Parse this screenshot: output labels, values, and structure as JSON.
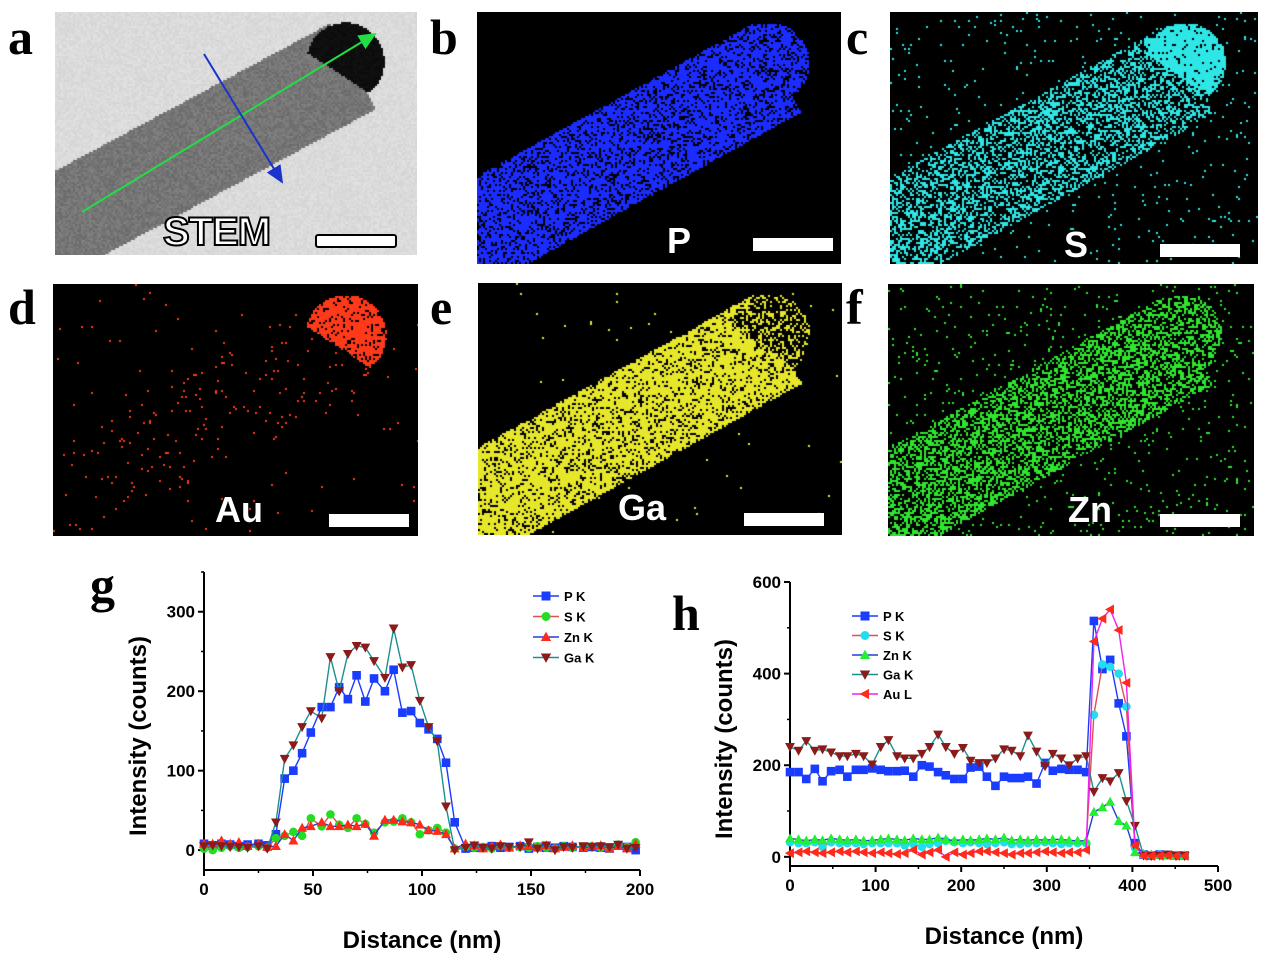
{
  "figure": {
    "panels": [
      {
        "letter": "a",
        "label": "STEM",
        "type": "stem"
      },
      {
        "letter": "b",
        "label": "P",
        "color": "#1a2cff",
        "type": "map"
      },
      {
        "letter": "c",
        "label": "S",
        "color": "#2ee6e6",
        "type": "map"
      },
      {
        "letter": "d",
        "label": "Au",
        "color": "#ff3a1a",
        "type": "map"
      },
      {
        "letter": "e",
        "label": "Ga",
        "color": "#e6e62a",
        "type": "map"
      },
      {
        "letter": "f",
        "label": "Zn",
        "color": "#2ee62e",
        "type": "map"
      }
    ],
    "stem_arrows": {
      "long_axis_color": "#22dd44",
      "cross_axis_color": "#1a33cc"
    }
  },
  "chart_data": [
    {
      "panel": "g",
      "type": "line",
      "title": "",
      "xlabel": "Distance (nm)",
      "ylabel": "Intensity (counts)",
      "xlim": [
        0,
        200
      ],
      "ylim": [
        -25,
        350
      ],
      "xticks": [
        0,
        50,
        100,
        150,
        200
      ],
      "yticks": [
        0,
        100,
        200,
        300
      ],
      "grid": false,
      "legend_position": "top-right",
      "x": [
        0,
        4,
        8,
        12,
        16,
        20,
        25,
        29,
        33,
        37,
        41,
        45,
        49,
        54,
        58,
        62,
        66,
        70,
        74,
        78,
        83,
        87,
        91,
        95,
        99,
        103,
        107,
        111,
        115,
        120,
        124,
        128,
        132,
        136,
        140,
        145,
        149,
        153,
        157,
        161,
        165,
        169,
        174,
        178,
        182,
        186,
        190,
        194,
        198
      ],
      "series": [
        {
          "name": "P K",
          "marker": "square",
          "marker_color": "#1a3cff",
          "line_color": "#1a3cff",
          "values": [
            8,
            6,
            8,
            7,
            5,
            7,
            8,
            6,
            20,
            90,
            100,
            122,
            148,
            180,
            180,
            205,
            190,
            220,
            187,
            216,
            200,
            227,
            173,
            175,
            160,
            152,
            140,
            110,
            35,
            2,
            3,
            3,
            5,
            3,
            4,
            5,
            2,
            4,
            3,
            3,
            5,
            4,
            3,
            4,
            3,
            2,
            6,
            4,
            0
          ]
        },
        {
          "name": "S K",
          "marker": "circle",
          "marker_color": "#22dd22",
          "line_color": "#e05050",
          "values": [
            2,
            0,
            3,
            5,
            3,
            4,
            5,
            3,
            15,
            18,
            23,
            18,
            40,
            30,
            45,
            32,
            28,
            40,
            33,
            22,
            35,
            36,
            40,
            35,
            20,
            25,
            28,
            22,
            2,
            4,
            3,
            4,
            2,
            5,
            3,
            4,
            3,
            5,
            3,
            2,
            5,
            3,
            4,
            5,
            3,
            2,
            7,
            4,
            10
          ]
        },
        {
          "name": "Zn K",
          "marker": "triangle-up",
          "marker_color": "#ff2a1a",
          "line_color": "#2040d0",
          "values": [
            8,
            8,
            12,
            8,
            10,
            5,
            8,
            4,
            5,
            20,
            12,
            28,
            30,
            35,
            30,
            30,
            32,
            30,
            33,
            18,
            38,
            38,
            36,
            35,
            32,
            25,
            24,
            20,
            2,
            8,
            6,
            2,
            5,
            7,
            3,
            6,
            5,
            3,
            6,
            2,
            4,
            6,
            3,
            5,
            6,
            2,
            5,
            2,
            8
          ]
        },
        {
          "name": "Ga K",
          "marker": "triangle-down",
          "marker_color": "#8b1a1a",
          "line_color": "#1a9090",
          "values": [
            5,
            6,
            5,
            4,
            4,
            3,
            5,
            2,
            35,
            115,
            132,
            155,
            175,
            166,
            243,
            200,
            247,
            257,
            255,
            238,
            217,
            279,
            230,
            233,
            188,
            155,
            137,
            55,
            0,
            3,
            6,
            3,
            2,
            5,
            4,
            4,
            10,
            2,
            6,
            0,
            4,
            3,
            5,
            4,
            5,
            4,
            7,
            2,
            3
          ]
        }
      ]
    },
    {
      "panel": "h",
      "type": "line",
      "title": "",
      "xlabel": "Distance (nm)",
      "ylabel": "Intensity (counts)",
      "xlim": [
        0,
        500
      ],
      "ylim": [
        -20,
        600
      ],
      "xticks": [
        0,
        100,
        200,
        300,
        400,
        500
      ],
      "yticks": [
        0,
        200,
        400,
        600
      ],
      "grid": false,
      "legend_position": "top-left",
      "x": [
        0,
        10,
        19,
        29,
        38,
        48,
        58,
        67,
        77,
        86,
        96,
        106,
        115,
        125,
        134,
        144,
        154,
        163,
        173,
        182,
        192,
        202,
        211,
        221,
        230,
        240,
        250,
        259,
        269,
        278,
        288,
        298,
        307,
        317,
        326,
        336,
        346,
        355,
        365,
        374,
        384,
        393,
        403,
        413,
        422,
        432,
        441,
        451,
        461
      ],
      "series": [
        {
          "name": "P K",
          "marker": "square",
          "marker_color": "#1a3cff",
          "line_color": "#1a3cff",
          "values": [
            185,
            185,
            170,
            192,
            165,
            187,
            190,
            175,
            190,
            190,
            193,
            190,
            187,
            187,
            188,
            175,
            200,
            197,
            185,
            178,
            170,
            170,
            195,
            197,
            175,
            155,
            175,
            172,
            172,
            175,
            160,
            205,
            188,
            192,
            190,
            190,
            185,
            515,
            410,
            430,
            335,
            263,
            30,
            5,
            3,
            5,
            4,
            3,
            3
          ]
        },
        {
          "name": "S K",
          "marker": "circle",
          "marker_color": "#22ddee",
          "line_color": "#e05050",
          "values": [
            32,
            30,
            30,
            32,
            22,
            32,
            30,
            30,
            30,
            28,
            30,
            30,
            30,
            30,
            25,
            28,
            22,
            28,
            30,
            35,
            32,
            30,
            32,
            30,
            28,
            30,
            32,
            28,
            28,
            30,
            30,
            32,
            30,
            28,
            30,
            30,
            30,
            310,
            420,
            415,
            400,
            328,
            20,
            5,
            4,
            5,
            5,
            3,
            3
          ]
        },
        {
          "name": "Zn K",
          "marker": "triangle-up",
          "marker_color": "#22ee33",
          "line_color": "#2040d0",
          "values": [
            40,
            38,
            35,
            38,
            36,
            40,
            38,
            36,
            38,
            35,
            36,
            38,
            40,
            38,
            36,
            40,
            38,
            38,
            42,
            38,
            35,
            38,
            36,
            38,
            40,
            38,
            42,
            36,
            38,
            36,
            38,
            36,
            38,
            38,
            36,
            35,
            35,
            98,
            108,
            120,
            78,
            68,
            10,
            6,
            5,
            4,
            3,
            3,
            3
          ]
        },
        {
          "name": "Ga K",
          "marker": "triangle-down",
          "marker_color": "#8b1a1a",
          "line_color": "#1a9090",
          "values": [
            240,
            232,
            253,
            232,
            235,
            228,
            220,
            220,
            225,
            220,
            202,
            240,
            255,
            220,
            215,
            215,
            225,
            240,
            267,
            240,
            225,
            238,
            210,
            205,
            205,
            215,
            235,
            232,
            220,
            265,
            230,
            198,
            225,
            215,
            200,
            215,
            220,
            142,
            172,
            165,
            183,
            122,
            68,
            3,
            2,
            3,
            5,
            2,
            2
          ]
        },
        {
          "name": "Au L",
          "marker": "triangle-left",
          "marker_color": "#ff2a1a",
          "line_color": "#ee22ee",
          "values": [
            8,
            10,
            12,
            10,
            8,
            10,
            12,
            10,
            12,
            10,
            8,
            10,
            8,
            6,
            8,
            15,
            5,
            10,
            15,
            0,
            10,
            5,
            8,
            12,
            12,
            10,
            8,
            5,
            8,
            8,
            10,
            12,
            10,
            8,
            10,
            10,
            15,
            470,
            520,
            540,
            495,
            380,
            25,
            2,
            2,
            2,
            3,
            2,
            2
          ]
        }
      ]
    }
  ]
}
